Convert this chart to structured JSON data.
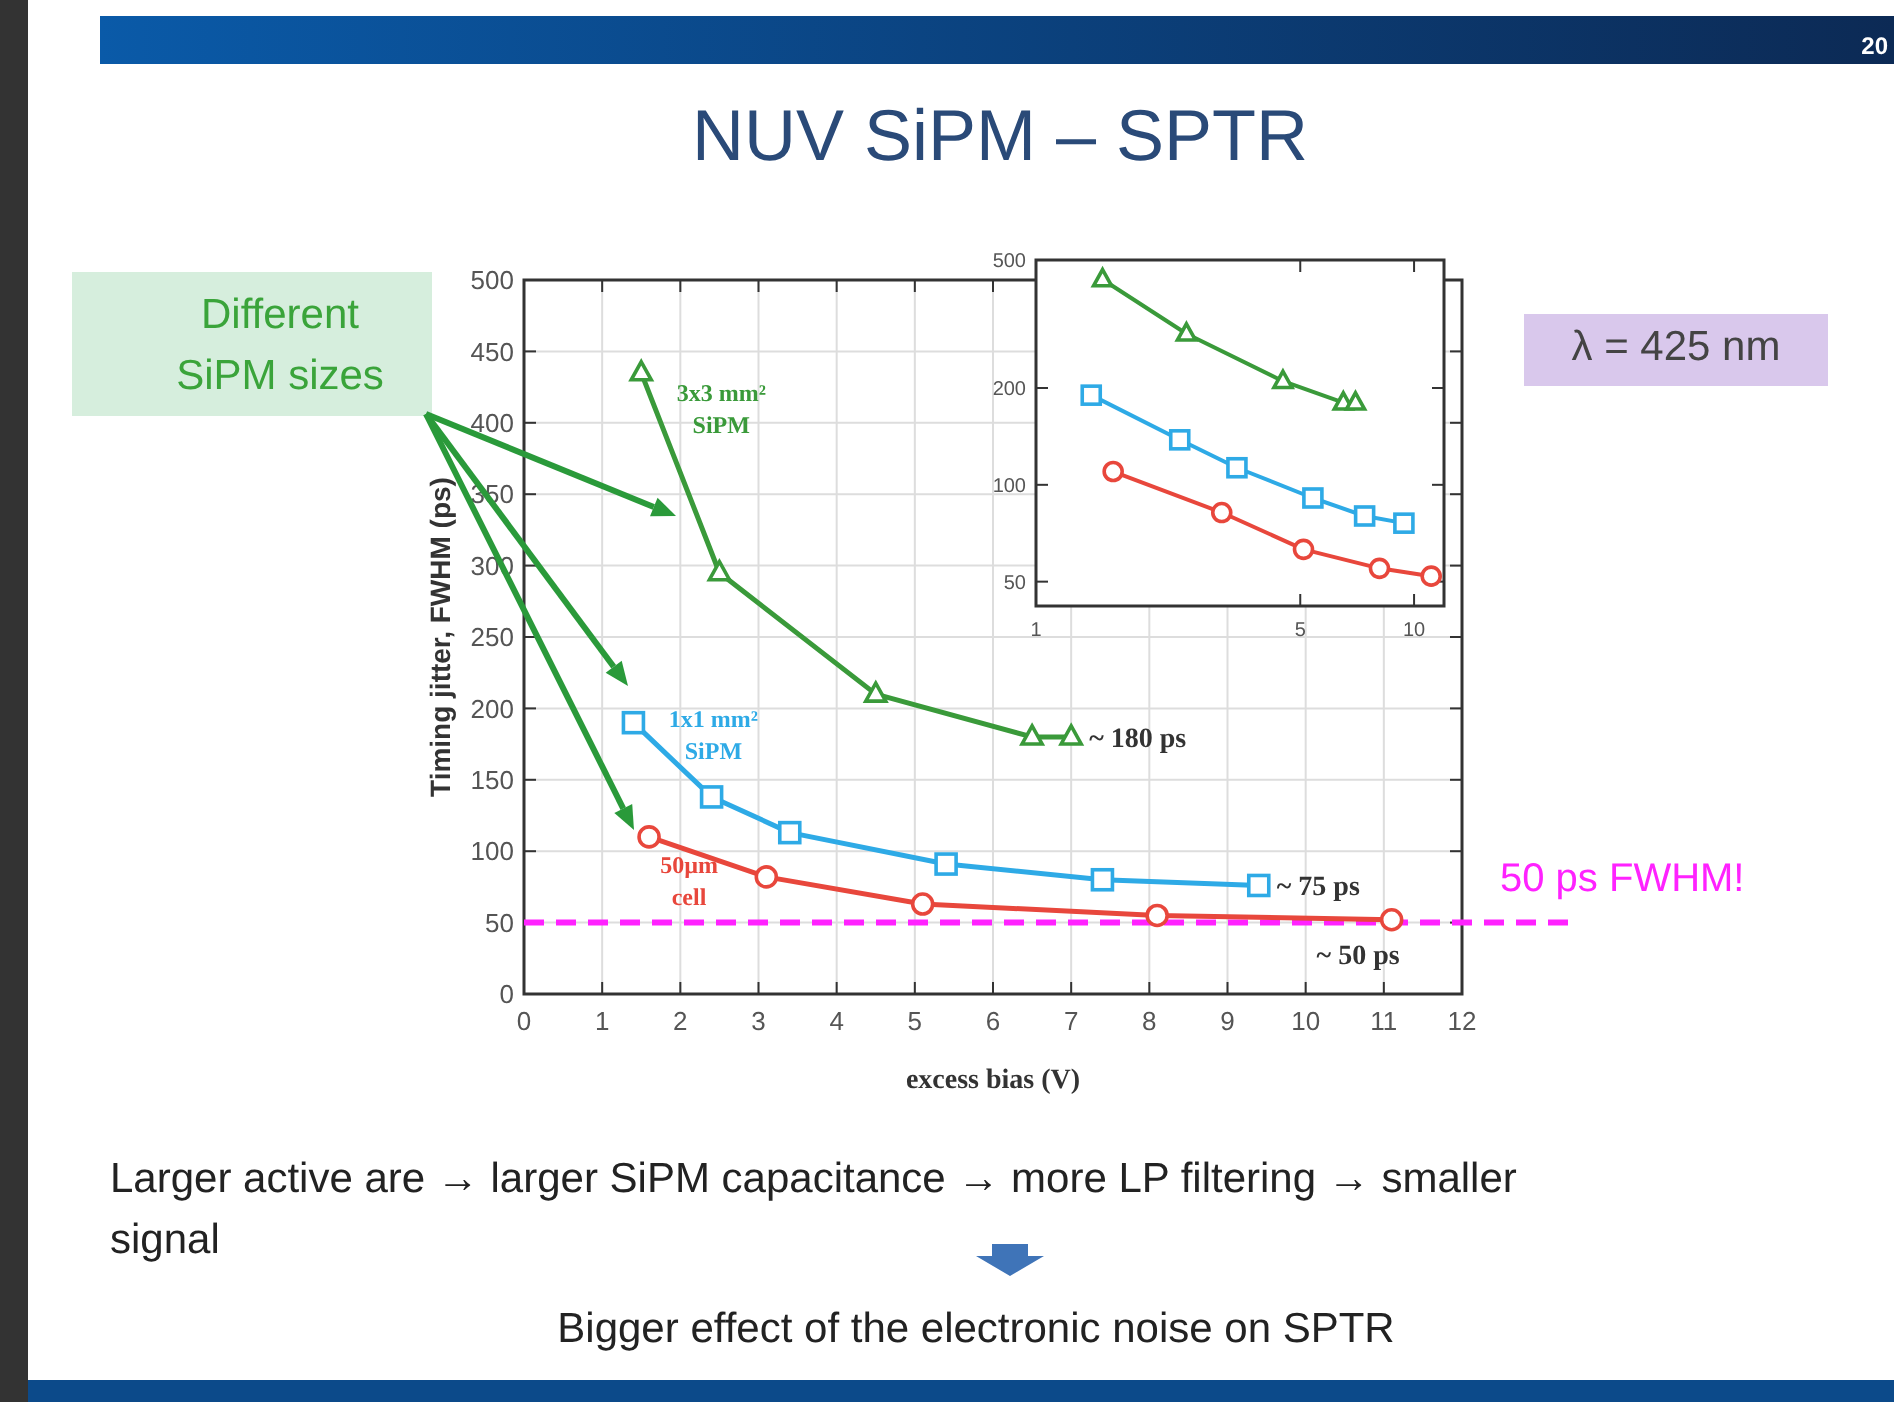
{
  "chart_data": [
    {
      "type": "line",
      "title": "NUV SiPM – SPTR",
      "xlabel": "excess bias (V)",
      "ylabel": "Timing jitter, FWHM (ps)",
      "xlim": [
        0,
        12
      ],
      "ylim": [
        0,
        500
      ],
      "xticks": [
        0,
        1,
        2,
        3,
        4,
        5,
        6,
        7,
        8,
        9,
        10,
        11,
        12
      ],
      "yticks": [
        0,
        50,
        100,
        150,
        200,
        250,
        300,
        350,
        400,
        450,
        500
      ],
      "grid": true,
      "series": [
        {
          "name": "3x3 mm² SiPM",
          "color": "#3a9a3a",
          "marker": "triangle",
          "x": [
            1.5,
            2.5,
            4.5,
            6.5,
            7.0
          ],
          "values": [
            435,
            295,
            210,
            180,
            180
          ]
        },
        {
          "name": "1x1 mm² SiPM",
          "color": "#2eaae6",
          "marker": "square",
          "x": [
            1.4,
            2.4,
            3.4,
            5.4,
            7.4,
            9.4
          ],
          "values": [
            190,
            138,
            113,
            91,
            80,
            76
          ]
        },
        {
          "name": "50µm cell",
          "color": "#e8473c",
          "marker": "circle",
          "x": [
            1.6,
            3.1,
            5.1,
            8.1,
            11.1
          ],
          "values": [
            110,
            82,
            63,
            55,
            52
          ]
        }
      ],
      "ref_lines": [
        {
          "axis": "y",
          "value": 50,
          "label": "50 ps FWHM!",
          "color": "#ff22ff",
          "line_style": "dashed"
        }
      ],
      "annotations": [
        {
          "text": "~ 180 ps",
          "x": 7.0,
          "y": 180
        },
        {
          "text": "~ 75 ps",
          "x": 9.4,
          "y": 76
        },
        {
          "text": "~ 50 ps",
          "x": 11.1,
          "y": 52
        },
        "20",
        "Different SiPM sizes",
        "λ = 425 nm",
        "Larger active are → larger SiPM capacitance → more LP filtering → smaller signal",
        "Bigger effect of the electronic noise on SPTR"
      ]
    },
    {
      "type": "line",
      "log": "xy",
      "xlim": [
        1,
        12
      ],
      "ylim": [
        42,
        500
      ],
      "xticks": [
        1,
        5,
        10
      ],
      "yticks": [
        50,
        100,
        200,
        500
      ],
      "grid": false,
      "series": [
        {
          "color": "#3a9a3a",
          "marker": "triangle",
          "x": [
            1.5,
            2.5,
            4.5,
            6.5,
            7.0
          ],
          "values": [
            435,
            295,
            210,
            180,
            180
          ]
        },
        {
          "color": "#2eaae6",
          "marker": "square",
          "x": [
            1.4,
            2.4,
            3.4,
            5.4,
            7.4,
            9.4
          ],
          "values": [
            190,
            138,
            113,
            91,
            80,
            76
          ]
        },
        {
          "color": "#e8473c",
          "marker": "circle",
          "x": [
            1.6,
            3.1,
            5.1,
            8.1,
            11.1
          ],
          "values": [
            110,
            82,
            63,
            55,
            52
          ]
        }
      ]
    }
  ]
}
